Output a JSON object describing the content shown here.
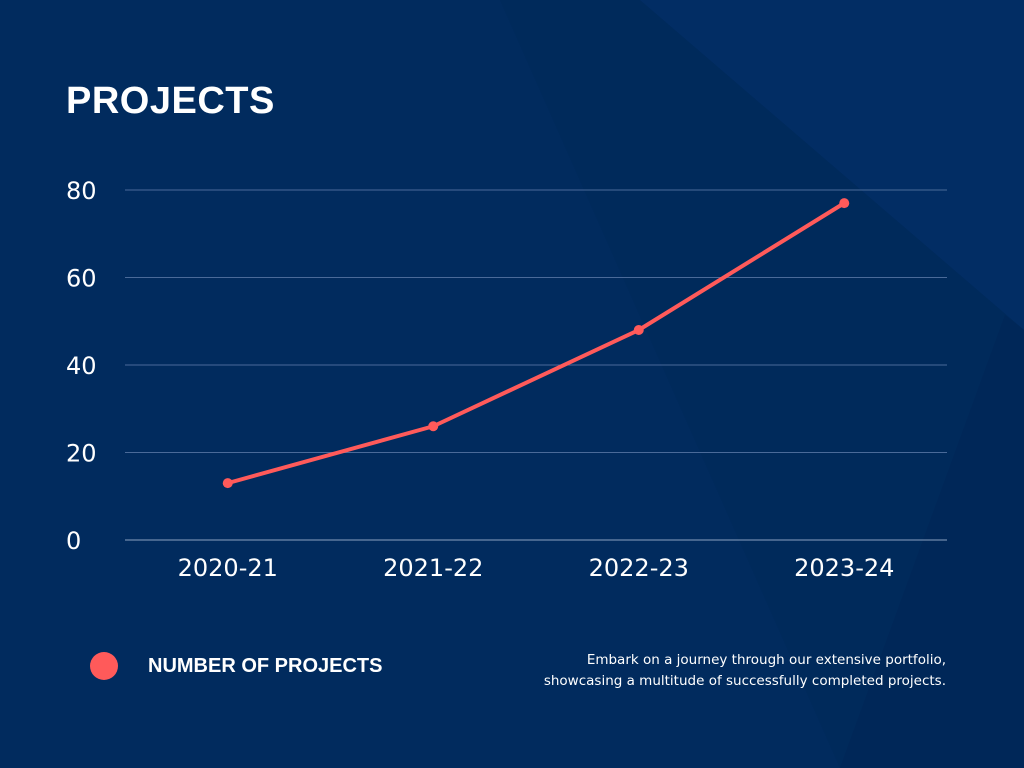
{
  "title": "PROJECTS",
  "colors": {
    "background": "#012b5e",
    "line": "#ff5a5a",
    "grid": "#4a6a99"
  },
  "legend": {
    "label": "NUMBER OF PROJECTS",
    "placement": "bottom-left"
  },
  "description": {
    "line1": "Embark on a journey through our extensive portfolio,",
    "line2": "showcasing a multitude of successfully completed projects."
  },
  "chart_data": {
    "type": "line",
    "title": "PROJECTS",
    "categories": [
      "2020-21",
      "2021-22",
      "2022-23",
      "2023-24"
    ],
    "series": [
      {
        "name": "NUMBER OF PROJECTS",
        "values": [
          13,
          26,
          48,
          77
        ]
      }
    ],
    "ylim": [
      0,
      80
    ],
    "yticks": [
      0,
      20,
      40,
      60,
      80
    ],
    "grid": true,
    "xlabel": "",
    "ylabel": ""
  }
}
